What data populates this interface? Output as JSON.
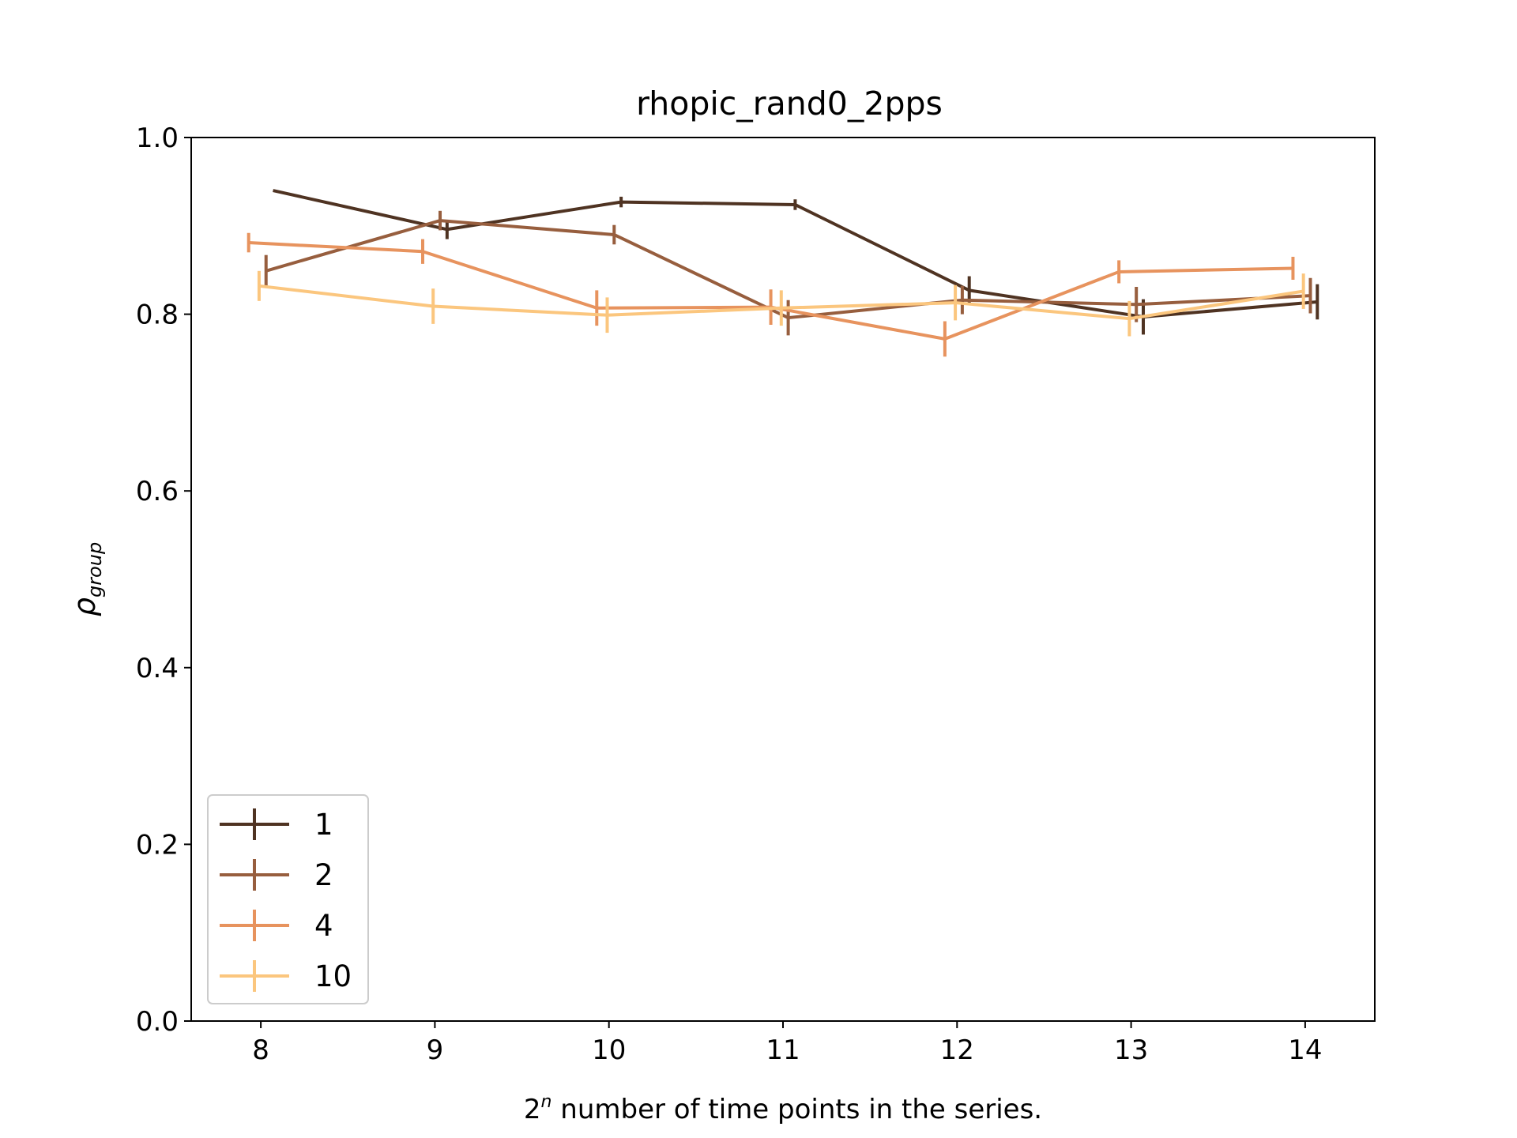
{
  "chart_data": {
    "type": "line",
    "title": "rhopic_rand0_2pps",
    "xlabel": {
      "base": "2",
      "superscript": "n",
      "rest": " number of time points in the series."
    },
    "ylabel": {
      "symbol": "ρ",
      "subscript": "group"
    },
    "xlim": [
      7.6,
      14.4
    ],
    "ylim": [
      0.0,
      1.0
    ],
    "xticks": [
      8,
      9,
      10,
      11,
      12,
      13,
      14
    ],
    "xtick_labels": [
      "8",
      "9",
      "10",
      "11",
      "12",
      "13",
      "14"
    ],
    "yticks": [
      0.0,
      0.2,
      0.4,
      0.6,
      0.8,
      1.0
    ],
    "ytick_labels": [
      "0.0",
      "0.2",
      "0.4",
      "0.6",
      "0.8",
      "1.0"
    ],
    "grid": false,
    "legend_position": "lower-left",
    "series": [
      {
        "name": "1",
        "color": "#4f3322",
        "x": [
          8.07,
          9.07,
          10.07,
          11.07,
          12.07,
          13.07,
          14.07
        ],
        "y": [
          0.94,
          0.896,
          0.927,
          0.924,
          0.827,
          0.797,
          0.814
        ],
        "yerr": [
          0.0,
          0.011,
          0.006,
          0.006,
          0.016,
          0.02,
          0.02
        ]
      },
      {
        "name": "2",
        "color": "#975e3e",
        "x": [
          8.03,
          9.03,
          10.03,
          11.03,
          12.03,
          13.03,
          14.03
        ],
        "y": [
          0.849,
          0.906,
          0.89,
          0.796,
          0.816,
          0.811,
          0.821
        ],
        "yerr": [
          0.018,
          0.011,
          0.011,
          0.02,
          0.016,
          0.02,
          0.02
        ]
      },
      {
        "name": "4",
        "color": "#e7935e",
        "x": [
          7.93,
          8.93,
          9.93,
          10.93,
          11.93,
          12.93,
          13.93
        ],
        "y": [
          0.881,
          0.871,
          0.807,
          0.808,
          0.772,
          0.848,
          0.852
        ],
        "yerr": [
          0.011,
          0.014,
          0.02,
          0.02,
          0.02,
          0.013,
          0.013
        ]
      },
      {
        "name": "10",
        "color": "#fbc67e",
        "x": [
          7.99,
          8.99,
          9.99,
          10.99,
          11.99,
          12.99,
          13.99
        ],
        "y": [
          0.832,
          0.809,
          0.799,
          0.807,
          0.813,
          0.795,
          0.826
        ],
        "yerr": [
          0.017,
          0.02,
          0.02,
          0.02,
          0.02,
          0.02,
          0.02
        ]
      }
    ]
  }
}
